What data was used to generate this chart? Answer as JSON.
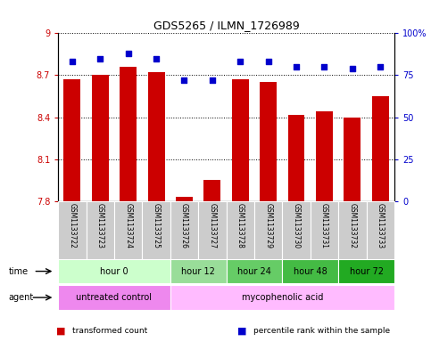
{
  "title": "GDS5265 / ILMN_1726989",
  "samples": [
    "GSM1133722",
    "GSM1133723",
    "GSM1133724",
    "GSM1133725",
    "GSM1133726",
    "GSM1133727",
    "GSM1133728",
    "GSM1133729",
    "GSM1133730",
    "GSM1133731",
    "GSM1133732",
    "GSM1133733"
  ],
  "bar_values": [
    8.67,
    8.7,
    8.76,
    8.72,
    7.83,
    7.95,
    8.67,
    8.65,
    8.42,
    8.44,
    8.4,
    8.55
  ],
  "percentile_values": [
    83,
    85,
    88,
    85,
    72,
    72,
    83,
    83,
    80,
    80,
    79,
    80
  ],
  "ymin": 7.8,
  "ymax": 9.0,
  "yticks": [
    7.8,
    8.1,
    8.4,
    8.7,
    9.0
  ],
  "ytick_labels": [
    "7.8",
    "8.1",
    "8.4",
    "8.7",
    "9"
  ],
  "y2min": 0,
  "y2max": 100,
  "y2ticks": [
    0,
    25,
    50,
    75,
    100
  ],
  "y2tick_labels": [
    "0",
    "25",
    "50",
    "75",
    "100%"
  ],
  "bar_color": "#cc0000",
  "dot_color": "#0000cc",
  "bar_width": 0.6,
  "time_groups": [
    {
      "label": "hour 0",
      "start": 0,
      "end": 4,
      "color": "#ccffcc"
    },
    {
      "label": "hour 12",
      "start": 4,
      "end": 6,
      "color": "#99dd99"
    },
    {
      "label": "hour 24",
      "start": 6,
      "end": 8,
      "color": "#66cc66"
    },
    {
      "label": "hour 48",
      "start": 8,
      "end": 10,
      "color": "#44bb44"
    },
    {
      "label": "hour 72",
      "start": 10,
      "end": 12,
      "color": "#22aa22"
    }
  ],
  "agent_groups": [
    {
      "label": "untreated control",
      "start": 0,
      "end": 4,
      "color": "#ee88ee"
    },
    {
      "label": "mycophenolic acid",
      "start": 4,
      "end": 12,
      "color": "#ffbbff"
    }
  ],
  "legend_items": [
    {
      "label": "transformed count",
      "color": "#cc0000"
    },
    {
      "label": "percentile rank within the sample",
      "color": "#0000cc"
    }
  ],
  "time_row_label": "time",
  "agent_row_label": "agent",
  "background_color": "#ffffff",
  "plot_bg_color": "#ffffff",
  "axis_left_color": "#cc0000",
  "axis_right_color": "#0000cc",
  "ticklabel_bg_color": "#cccccc",
  "border_color": "#000000"
}
